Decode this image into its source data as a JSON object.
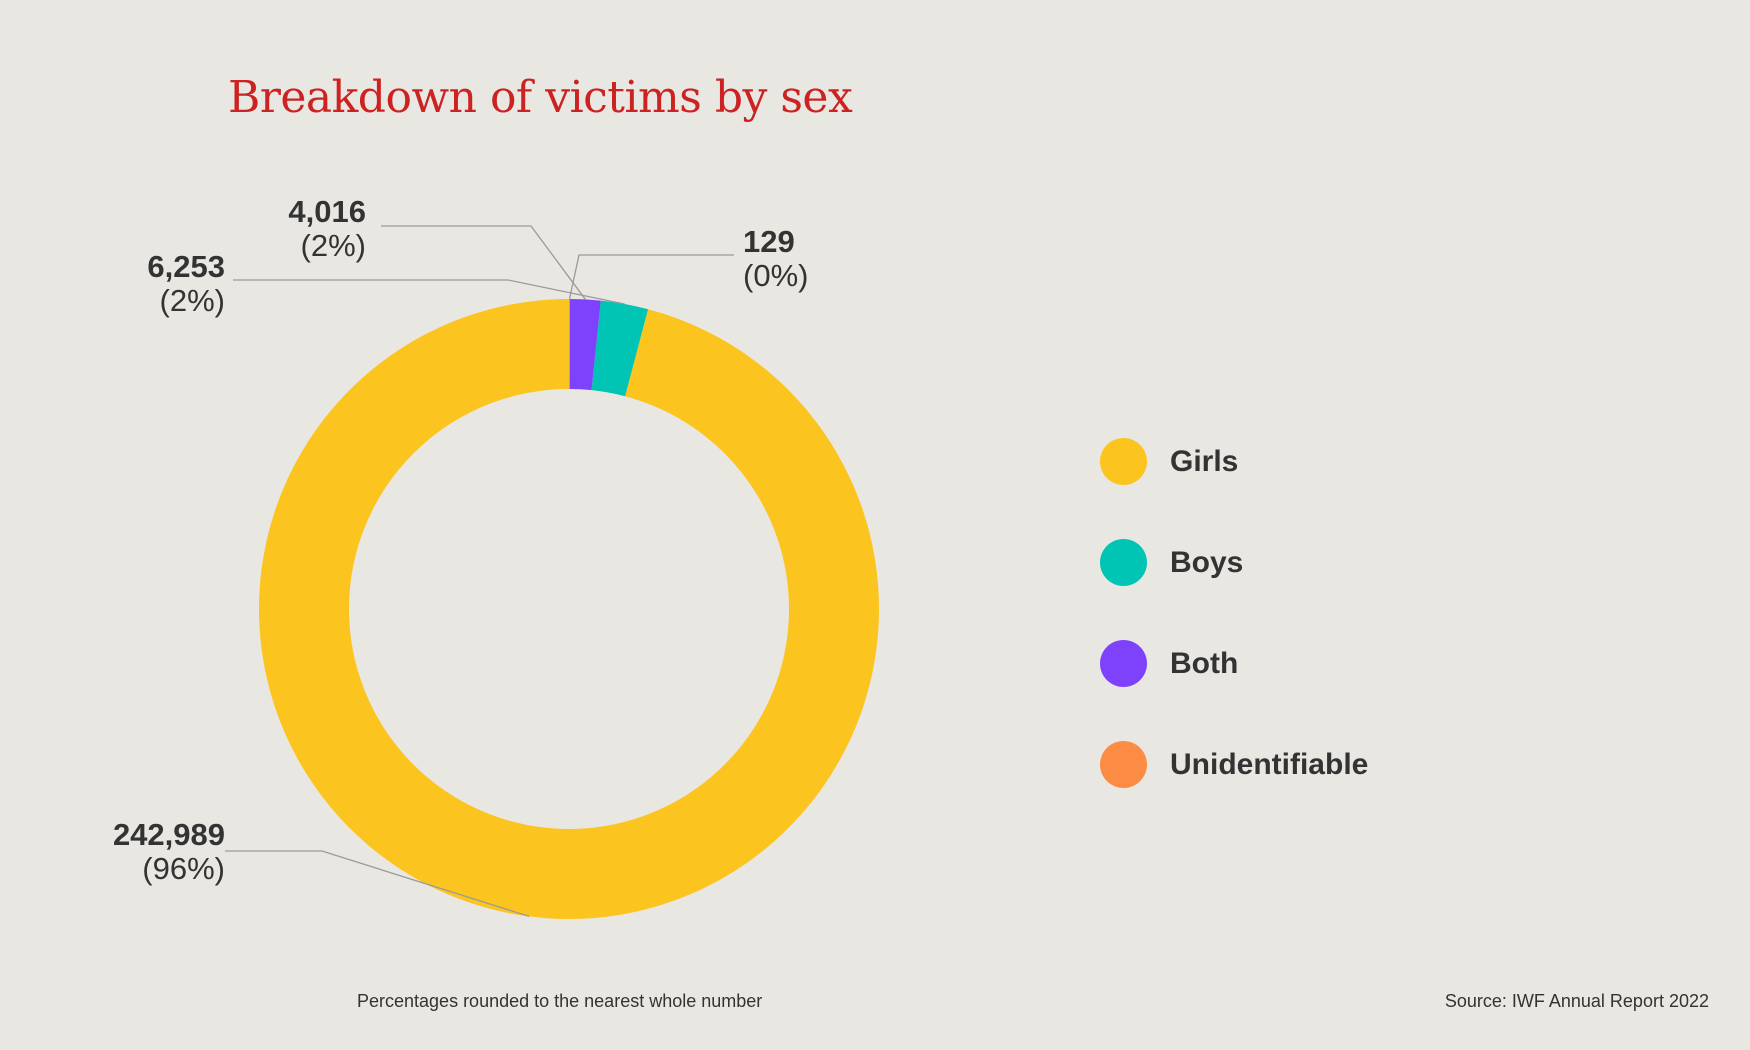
{
  "title": "Breakdown of victims by sex",
  "footnote": "Percentages rounded to the nearest whole number",
  "source": "Source: IWF Annual Report 2022",
  "chart_data": {
    "type": "pie",
    "variant": "donut",
    "title": "Breakdown of victims by sex",
    "legend_position": "right",
    "series": [
      {
        "name": "Girls",
        "value": 242989,
        "label": "242,989",
        "percent_label": "(96%)",
        "color": "#fcc41e"
      },
      {
        "name": "Boys",
        "value": 6253,
        "label": "6,253",
        "percent_label": "(2%)",
        "color": "#00c4b4"
      },
      {
        "name": "Both",
        "value": 4016,
        "label": "4,016",
        "percent_label": "(2%)",
        "color": "#7f42fc"
      },
      {
        "name": "Unidentifiable",
        "value": 129,
        "label": "129",
        "percent_label": "(0%)",
        "color": "#fc8c44"
      }
    ]
  }
}
